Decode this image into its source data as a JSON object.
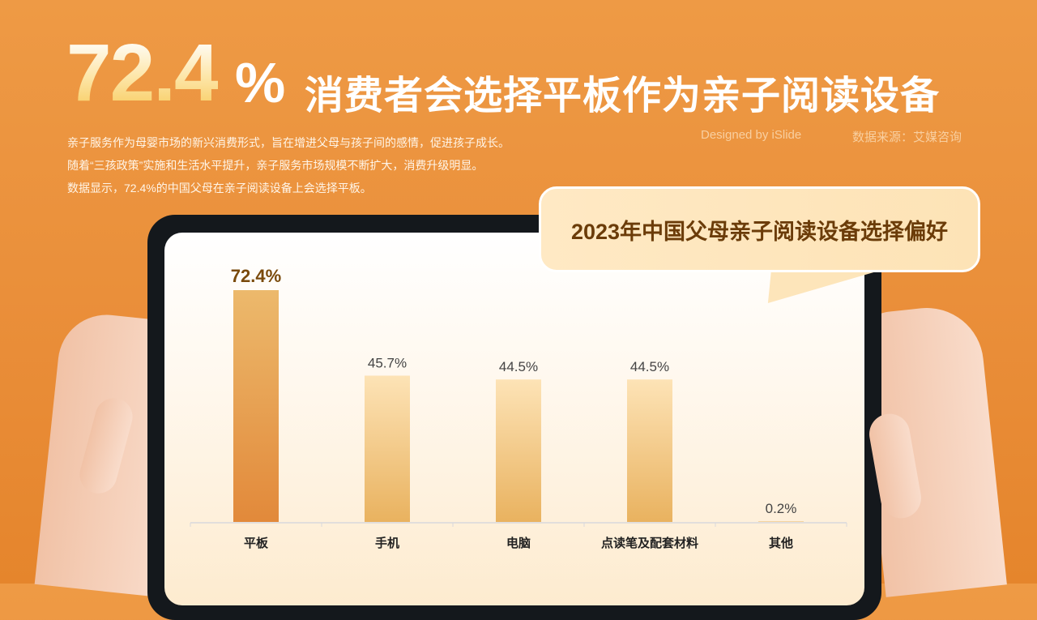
{
  "header": {
    "big_number": "72.4",
    "big_percent": "%",
    "headline": "消费者会选择平板作为亲子阅读设备"
  },
  "description": [
    "亲子服务作为母婴市场的新兴消费形式，旨在增进父母与孩子间的感情，促进孩子成长。",
    "随着“三孩政策”实施和生活水平提升，亲子服务市场规模不断扩大，消费升级明显。",
    "数据显示，72.4%的中国父母在亲子阅读设备上会选择平板。"
  ],
  "credits": {
    "designer": "Designed by iSlide",
    "source": "数据来源：艾媒咨询"
  },
  "chart_data": {
    "type": "bar",
    "title": "2023年中国父母亲子阅读设备选择偏好",
    "categories": [
      "平板",
      "手机",
      "电脑",
      "点读笔及配套材料",
      "其他"
    ],
    "values": [
      72.4,
      45.7,
      44.5,
      44.5,
      0.2
    ],
    "labels": [
      "72.4%",
      "45.7%",
      "44.5%",
      "44.5%",
      "0.2%"
    ],
    "unit": "%",
    "ylim": [
      0,
      75
    ],
    "grid": false,
    "highlight_index": 0,
    "colors": {
      "highlight_top": "#ecb96c",
      "highlight_bottom": "#e2893a",
      "normal_top": "#fde3b6",
      "normal_bottom": "#e9b25f",
      "highlight_label": "#7a4a0c",
      "label": "#444444"
    }
  }
}
